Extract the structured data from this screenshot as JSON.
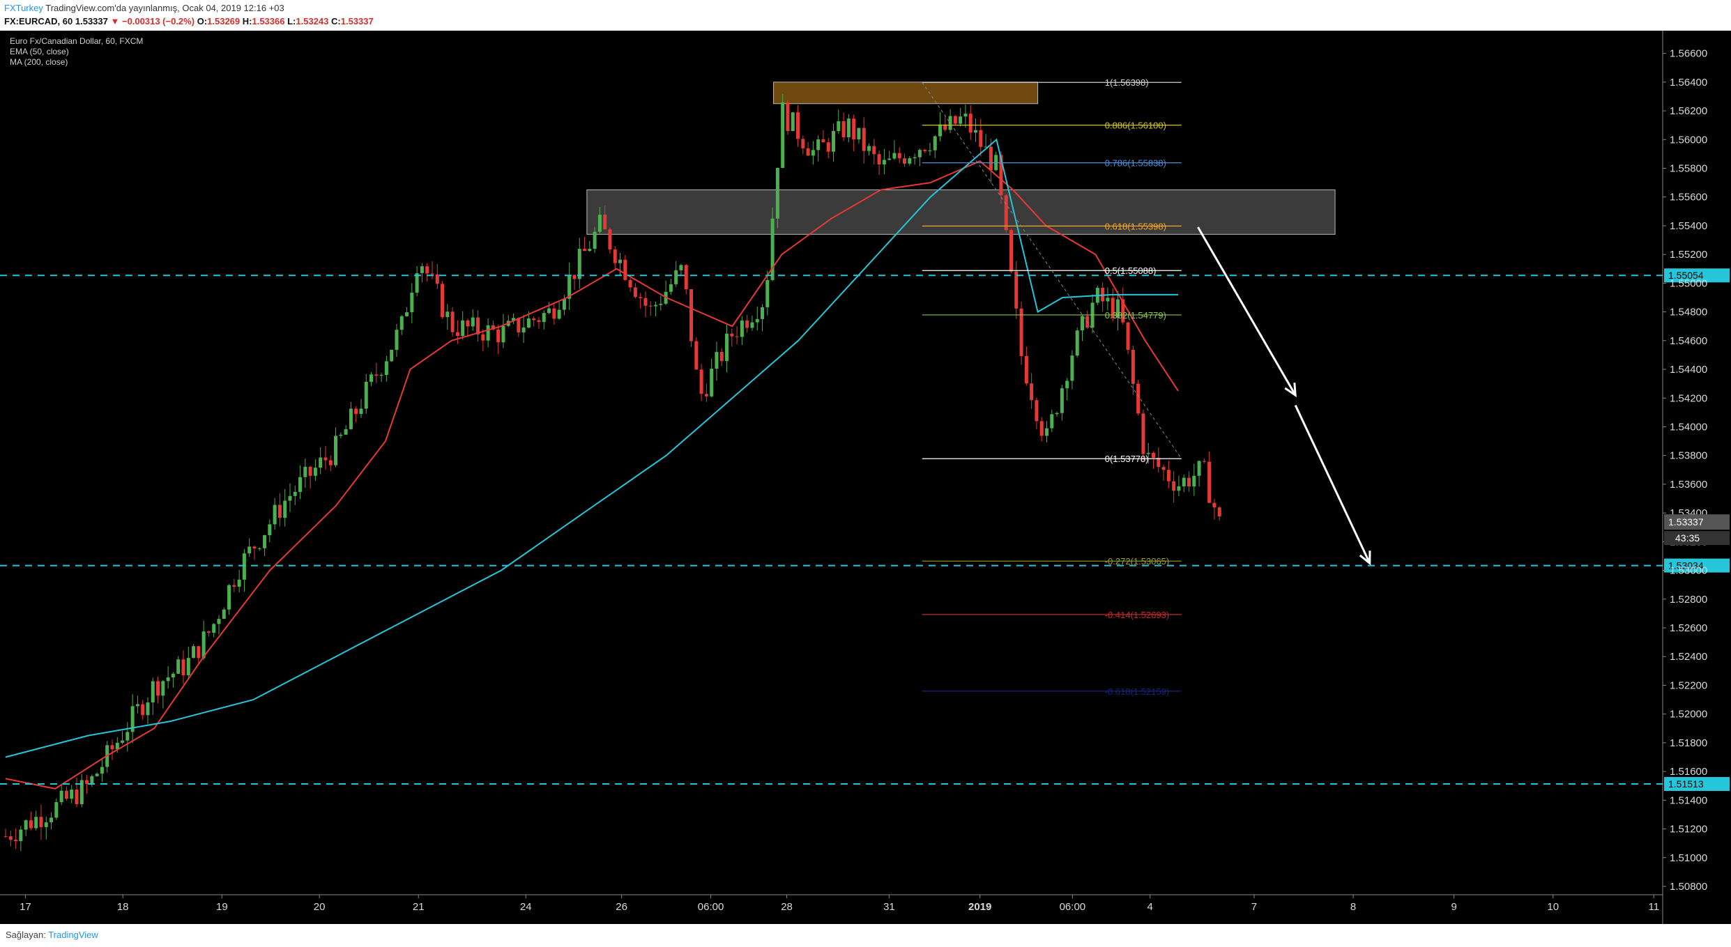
{
  "header": {
    "author": "FXTurkey",
    "published": "TradingView.com'da yayınlanmış, Ocak 04, 2019 12:16 +03",
    "symbol": "FX:EURCAD, 60",
    "last": "1.53337",
    "change": "▼ −0.00313 (−0.2%)",
    "o_label": "O:",
    "o_val": "1.53269",
    "h_label": "H:",
    "h_val": "1.53366",
    "l_label": "L:",
    "l_val": "1.53243",
    "c_label": "C:",
    "c_val": "1.53337"
  },
  "legend": {
    "title": "Euro Fx/Canadian Dollar, 60, FXCM",
    "ema": "EMA (50, close)",
    "ma": "MA (200, close)"
  },
  "footer": {
    "prefix": "Sağlayan:",
    "provider": "TradingView"
  },
  "colors": {
    "background": "#000000",
    "up": "#4caf50",
    "down": "#e53935",
    "ema50": "#e53935",
    "ma200": "#26c6da",
    "hline": "#26c6da",
    "arrow": "#ffffff"
  },
  "chart_data": {
    "type": "candlestick",
    "title": "Euro Fx/Canadian Dollar, 60, FXCM",
    "ylim": [
      1.508,
      1.567
    ],
    "y_ticks": [
      "1.56600",
      "1.56400",
      "1.56200",
      "1.56000",
      "1.55800",
      "1.55600",
      "1.55400",
      "1.55200",
      "1.55000",
      "1.54800",
      "1.54600",
      "1.54400",
      "1.54200",
      "1.54000",
      "1.53800",
      "1.53600",
      "1.53400",
      "1.53200",
      "1.53000",
      "1.52800",
      "1.52600",
      "1.52400",
      "1.52200",
      "1.52000",
      "1.51800",
      "1.51600",
      "1.51400",
      "1.51200",
      "1.51000",
      "1.50800"
    ],
    "x_ticks": [
      "17",
      "18",
      "19",
      "20",
      "21",
      "24",
      "26",
      "06:00",
      "28",
      "31",
      "2019",
      "06:00",
      "4",
      "7",
      "8",
      "9",
      "10",
      "11"
    ],
    "price_path": [
      [
        0,
        1.5115
      ],
      [
        0.03,
        1.5135
      ],
      [
        0.05,
        1.515
      ],
      [
        0.07,
        1.5185
      ],
      [
        0.09,
        1.522
      ],
      [
        0.11,
        1.5235
      ],
      [
        0.125,
        1.526
      ],
      [
        0.14,
        1.53
      ],
      [
        0.17,
        1.535
      ],
      [
        0.2,
        1.5385
      ],
      [
        0.24,
        1.547
      ],
      [
        0.25,
        1.552
      ],
      [
        0.27,
        1.547
      ],
      [
        0.3,
        1.5465
      ],
      [
        0.33,
        1.548
      ],
      [
        0.36,
        1.554
      ],
      [
        0.39,
        1.548
      ],
      [
        0.41,
        1.551
      ],
      [
        0.42,
        1.542
      ],
      [
        0.44,
        1.5465
      ],
      [
        0.46,
        1.549
      ],
      [
        0.47,
        1.562
      ],
      [
        0.49,
        1.559
      ],
      [
        0.51,
        1.561
      ],
      [
        0.53,
        1.558
      ],
      [
        0.56,
        1.56
      ],
      [
        0.58,
        1.5615
      ],
      [
        0.6,
        1.558
      ],
      [
        0.615,
        1.545
      ],
      [
        0.63,
        1.539
      ],
      [
        0.645,
        1.545
      ],
      [
        0.66,
        1.549
      ],
      [
        0.675,
        1.548
      ],
      [
        0.69,
        1.538
      ],
      [
        0.71,
        1.536
      ],
      [
        0.725,
        1.537
      ],
      [
        0.735,
        1.5333
      ]
    ],
    "series": [
      {
        "name": "EMA (50, close)",
        "values": [
          [
            0,
            1.5155
          ],
          [
            0.03,
            1.5148
          ],
          [
            0.06,
            1.517
          ],
          [
            0.09,
            1.519
          ],
          [
            0.12,
            1.524
          ],
          [
            0.16,
            1.53
          ],
          [
            0.2,
            1.5345
          ],
          [
            0.23,
            1.539
          ],
          [
            0.245,
            1.544
          ],
          [
            0.27,
            1.546
          ],
          [
            0.3,
            1.547
          ],
          [
            0.34,
            1.549
          ],
          [
            0.37,
            1.551
          ],
          [
            0.4,
            1.549
          ],
          [
            0.44,
            1.547
          ],
          [
            0.47,
            1.552
          ],
          [
            0.5,
            1.5545
          ],
          [
            0.53,
            1.5565
          ],
          [
            0.56,
            1.557
          ],
          [
            0.59,
            1.5585
          ],
          [
            0.61,
            1.5565
          ],
          [
            0.63,
            1.554
          ],
          [
            0.66,
            1.552
          ],
          [
            0.69,
            1.546
          ],
          [
            0.71,
            1.5425
          ]
        ]
      },
      {
        "name": "MA (200, close)",
        "values": [
          [
            0,
            1.517
          ],
          [
            0.05,
            1.5185
          ],
          [
            0.1,
            1.5195
          ],
          [
            0.15,
            1.521
          ],
          [
            0.2,
            1.524
          ],
          [
            0.25,
            1.527
          ],
          [
            0.3,
            1.53
          ],
          [
            0.35,
            1.534
          ],
          [
            0.4,
            1.538
          ],
          [
            0.44,
            1.542
          ],
          [
            0.48,
            1.546
          ],
          [
            0.52,
            1.551
          ],
          [
            0.56,
            1.556
          ],
          [
            0.6,
            1.56
          ],
          [
            0.625,
            1.548
          ],
          [
            0.64,
            1.549
          ],
          [
            0.67,
            1.5492
          ],
          [
            0.71,
            1.5492
          ]
        ]
      }
    ],
    "fibonacci": [
      {
        "label": "1(1.56398)",
        "value": 1.56398,
        "color": "#d0d0d0"
      },
      {
        "label": "0.886(1.56100)",
        "value": 1.561,
        "color": "#d4c600"
      },
      {
        "label": "0.786(1.55838)",
        "value": 1.55838,
        "color": "#4a90d9"
      },
      {
        "label": "0.618(1.55398)",
        "value": 1.55398,
        "color": "#f5a623"
      },
      {
        "label": "0.5(1.55088)",
        "value": 1.55088,
        "color": "#ffffff"
      },
      {
        "label": "0.382(1.54779)",
        "value": 1.54779,
        "color": "#8bc34a"
      },
      {
        "label": "0(1.53778)",
        "value": 1.53778,
        "color": "#ffffff"
      },
      {
        "label": "-0.272(1.53065)",
        "value": 1.53065,
        "color": "#9e9d24"
      },
      {
        "label": "-0.414(1.52693)",
        "value": 1.52693,
        "color": "#c62828"
      },
      {
        "label": "-0.618(1.52159)",
        "value": 1.52159,
        "color": "#1a237e"
      }
    ],
    "horizontal_levels": [
      {
        "label": "1.55054",
        "value": 1.55054
      },
      {
        "label": "1.53034",
        "value": 1.53034
      },
      {
        "label": "1.51513",
        "value": 1.51513
      }
    ],
    "current_price": {
      "label": "1.53337",
      "value": 1.53337,
      "countdown": "43:35"
    },
    "zones": [
      {
        "name": "resistance-top",
        "y1": 1.564,
        "y2": 1.5625,
        "color": "#8a5a12"
      },
      {
        "name": "supply",
        "y1": 1.5565,
        "y2": 1.5534,
        "color": "#4a4a4a"
      }
    ],
    "grid": false
  }
}
